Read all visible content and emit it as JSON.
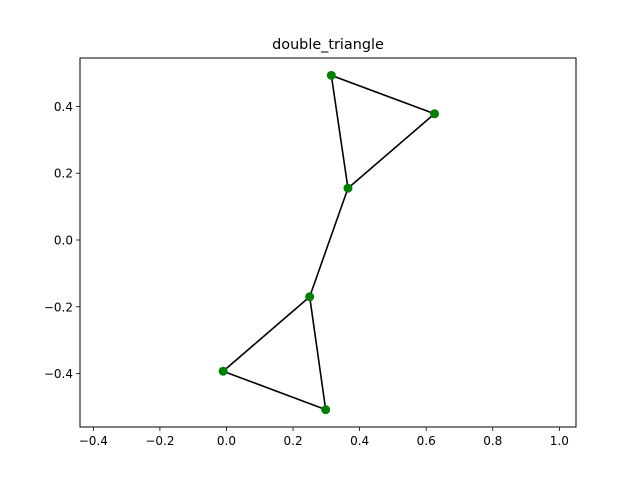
{
  "chart_data": {
    "type": "scatter",
    "title": "double_triangle",
    "xlabel": "",
    "ylabel": "",
    "xlim": [
      -0.44,
      1.05
    ],
    "ylim": [
      -0.56,
      0.545
    ],
    "grid": false,
    "x_ticks": [
      {
        "value": -0.4,
        "label": "−0.4"
      },
      {
        "value": -0.2,
        "label": "−0.2"
      },
      {
        "value": 0.0,
        "label": "0.0"
      },
      {
        "value": 0.2,
        "label": "0.2"
      },
      {
        "value": 0.4,
        "label": "0.4"
      },
      {
        "value": 0.6,
        "label": "0.6"
      },
      {
        "value": 0.8,
        "label": "0.8"
      },
      {
        "value": 1.0,
        "label": "1.0"
      }
    ],
    "y_ticks": [
      {
        "value": -0.4,
        "label": "−0.4"
      },
      {
        "value": -0.2,
        "label": "−0.2"
      },
      {
        "value": 0.0,
        "label": "0.0"
      },
      {
        "value": 0.2,
        "label": "0.2"
      },
      {
        "value": 0.4,
        "label": "0.4"
      }
    ],
    "node_color": "#008000",
    "edge_color": "#000000",
    "nodes": [
      {
        "x": 0.315,
        "y": 0.493
      },
      {
        "x": 0.625,
        "y": 0.378
      },
      {
        "x": 0.365,
        "y": 0.155
      },
      {
        "x": 0.25,
        "y": -0.17
      },
      {
        "x": -0.01,
        "y": -0.393
      },
      {
        "x": 0.298,
        "y": -0.508
      }
    ],
    "edges": [
      [
        0,
        1
      ],
      [
        1,
        2
      ],
      [
        2,
        0
      ],
      [
        2,
        3
      ],
      [
        3,
        4
      ],
      [
        4,
        5
      ],
      [
        5,
        3
      ]
    ]
  }
}
